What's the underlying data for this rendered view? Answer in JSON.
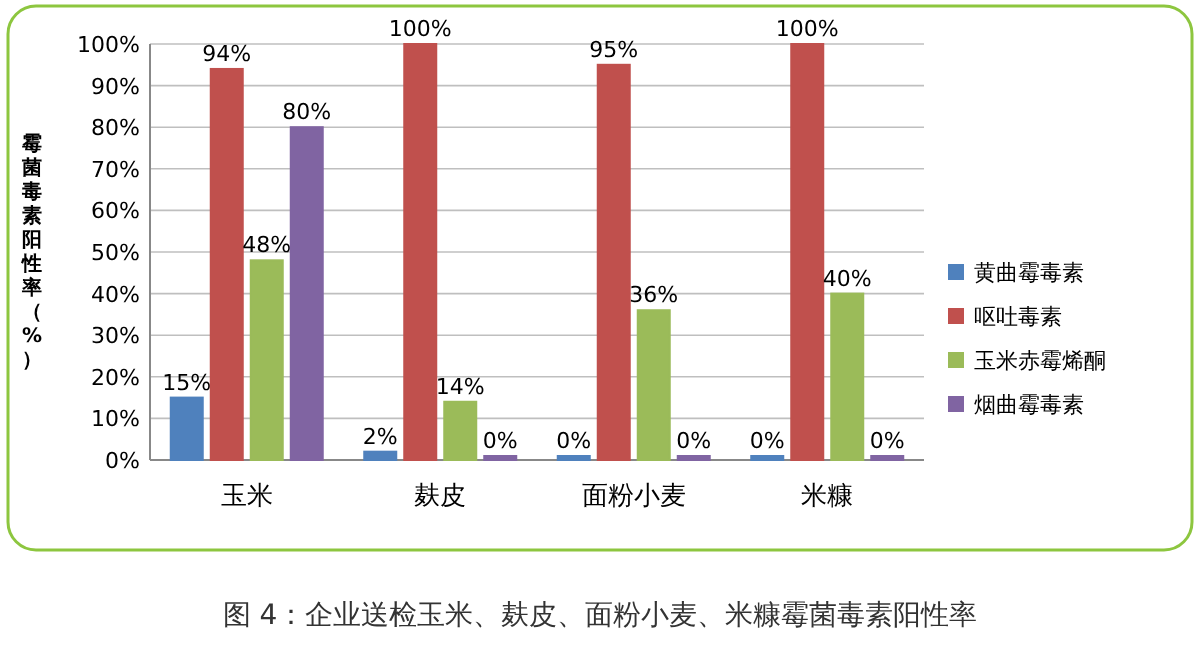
{
  "chart_data": {
    "type": "bar",
    "title": "图 4：企业送检玉米、麸皮、面粉小麦、米糠霉菌毒素阳性率",
    "ylabel": "霉菌毒素阳性率（%）",
    "categories": [
      "玉米",
      "麸皮",
      "面粉小麦",
      "米糠"
    ],
    "series": [
      {
        "name": "黄曲霉毒素",
        "color": "#4f81bd",
        "values": [
          15,
          2,
          0,
          0
        ],
        "value_labels": [
          "15%",
          "2%",
          "0%",
          "0%"
        ]
      },
      {
        "name": "呕吐毒素",
        "color": "#c0504d",
        "values": [
          94,
          100,
          95,
          100
        ],
        "value_labels": [
          "94%",
          "100%",
          "95%",
          "100%"
        ]
      },
      {
        "name": "玉米赤霉烯酮",
        "color": "#9bbb59",
        "values": [
          48,
          14,
          36,
          40
        ],
        "value_labels": [
          "48%",
          "14%",
          "36%",
          "40%"
        ]
      },
      {
        "name": "烟曲霉毒素",
        "color": "#8064a2",
        "values": [
          80,
          0,
          0,
          0
        ],
        "value_labels": [
          "80%",
          "0%",
          "0%",
          "0%"
        ]
      }
    ],
    "ylim": [
      0,
      100
    ],
    "yticks": [
      {
        "value": 0,
        "label": "0%"
      },
      {
        "value": 10,
        "label": "10%"
      },
      {
        "value": 20,
        "label": "20%"
      },
      {
        "value": 30,
        "label": "30%"
      },
      {
        "value": 40,
        "label": "40%"
      },
      {
        "value": 50,
        "label": "50%"
      },
      {
        "value": 60,
        "label": "60%"
      },
      {
        "value": 70,
        "label": "70%"
      },
      {
        "value": 80,
        "label": "80%"
      },
      {
        "value": 90,
        "label": "90%"
      },
      {
        "value": 100,
        "label": "100%"
      }
    ],
    "grid": "y",
    "legend": "right"
  }
}
